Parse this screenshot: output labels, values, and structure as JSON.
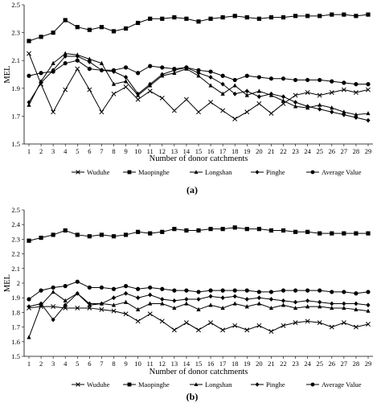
{
  "chart_data": [
    {
      "type": "line",
      "caption": "(a)",
      "xlabel": "Number of donor catchments",
      "ylabel": "MEL",
      "ylim": [
        1.5,
        2.5
      ],
      "yticks": [
        "1.5",
        "1.7",
        "1.9",
        "2.1",
        "2.3",
        "2.5"
      ],
      "x": [
        1,
        2,
        3,
        4,
        5,
        6,
        7,
        8,
        9,
        10,
        11,
        12,
        13,
        14,
        15,
        16,
        17,
        18,
        19,
        20,
        21,
        22,
        23,
        24,
        25,
        26,
        27,
        28,
        29
      ],
      "grid": false,
      "legend_position": "bottom",
      "series": [
        {
          "name": "Wuduhe",
          "marker": "x",
          "values": [
            2.15,
            1.93,
            1.73,
            1.89,
            2.04,
            1.89,
            1.73,
            1.86,
            1.91,
            1.82,
            1.88,
            1.83,
            1.74,
            1.82,
            1.73,
            1.8,
            1.74,
            1.68,
            1.73,
            1.79,
            1.72,
            1.79,
            1.85,
            1.87,
            1.85,
            1.87,
            1.89,
            1.87,
            1.89
          ]
        },
        {
          "name": "Maopinghe",
          "marker": "square",
          "values": [
            2.24,
            2.27,
            2.3,
            2.39,
            2.34,
            2.32,
            2.34,
            2.31,
            2.33,
            2.37,
            2.4,
            2.4,
            2.41,
            2.4,
            2.38,
            2.4,
            2.41,
            2.42,
            2.41,
            2.4,
            2.41,
            2.41,
            2.42,
            2.42,
            2.42,
            2.43,
            2.43,
            2.42,
            2.43
          ]
        },
        {
          "name": "Longshan",
          "marker": "triangle",
          "values": [
            1.78,
            1.95,
            2.08,
            2.15,
            2.14,
            2.11,
            2.08,
            1.93,
            1.95,
            1.85,
            1.92,
            1.99,
            2.01,
            2.04,
            1.99,
            1.92,
            1.86,
            1.92,
            1.85,
            1.88,
            1.85,
            1.81,
            1.77,
            1.76,
            1.78,
            1.76,
            1.73,
            1.71,
            1.72
          ]
        },
        {
          "name": "Pinghe",
          "marker": "diamond",
          "values": [
            1.8,
            1.94,
            2.03,
            2.13,
            2.13,
            2.09,
            2.03,
            2.02,
            1.98,
            1.86,
            1.93,
            2.0,
            2.03,
            2.05,
            2.01,
            1.98,
            1.93,
            1.86,
            1.88,
            1.84,
            1.86,
            1.84,
            1.8,
            1.77,
            1.75,
            1.73,
            1.71,
            1.69,
            1.67
          ]
        },
        {
          "name": "Average Value",
          "marker": "circle",
          "values": [
            1.99,
            2.01,
            2.02,
            2.08,
            2.1,
            2.04,
            2.03,
            2.03,
            2.05,
            2.01,
            2.06,
            2.05,
            2.04,
            2.05,
            2.03,
            2.02,
            1.99,
            1.96,
            1.99,
            1.98,
            1.97,
            1.97,
            1.96,
            1.96,
            1.96,
            1.95,
            1.94,
            1.93,
            1.93
          ]
        }
      ]
    },
    {
      "type": "line",
      "caption": "(b)",
      "xlabel": "Number of donor catchments",
      "ylabel": "MEL",
      "ylim": [
        1.5,
        2.5
      ],
      "yticks": [
        "1.5",
        "1.6",
        "1.7",
        "1.8",
        "1.9",
        "2",
        "2.1",
        "2.2",
        "2.3",
        "2.4",
        "2.5"
      ],
      "x": [
        1,
        2,
        3,
        4,
        5,
        6,
        7,
        8,
        9,
        10,
        11,
        12,
        13,
        14,
        15,
        16,
        17,
        18,
        19,
        20,
        21,
        22,
        23,
        24,
        25,
        26,
        27,
        28,
        29
      ],
      "grid": false,
      "legend_position": "bottom",
      "series": [
        {
          "name": "Wuduhe",
          "marker": "x",
          "values": [
            1.83,
            1.84,
            1.84,
            1.83,
            1.83,
            1.83,
            1.82,
            1.81,
            1.79,
            1.74,
            1.79,
            1.74,
            1.68,
            1.73,
            1.68,
            1.73,
            1.68,
            1.71,
            1.68,
            1.71,
            1.67,
            1.71,
            1.73,
            1.74,
            1.73,
            1.7,
            1.73,
            1.7,
            1.72
          ]
        },
        {
          "name": "Maopinghe",
          "marker": "square",
          "values": [
            2.29,
            2.31,
            2.33,
            2.36,
            2.33,
            2.32,
            2.33,
            2.32,
            2.33,
            2.35,
            2.34,
            2.35,
            2.37,
            2.36,
            2.36,
            2.37,
            2.37,
            2.38,
            2.37,
            2.37,
            2.36,
            2.36,
            2.35,
            2.35,
            2.34,
            2.34,
            2.34,
            2.34,
            2.34
          ]
        },
        {
          "name": "Longshan",
          "marker": "triangle",
          "values": [
            1.63,
            1.85,
            1.94,
            1.88,
            1.93,
            1.85,
            1.86,
            1.85,
            1.87,
            1.82,
            1.86,
            1.86,
            1.83,
            1.86,
            1.82,
            1.85,
            1.83,
            1.86,
            1.84,
            1.86,
            1.83,
            1.85,
            1.83,
            1.84,
            1.84,
            1.83,
            1.83,
            1.82,
            1.81
          ]
        },
        {
          "name": "Pinghe",
          "marker": "diamond",
          "values": [
            1.84,
            1.86,
            1.75,
            1.85,
            1.93,
            1.86,
            1.86,
            1.9,
            1.93,
            1.9,
            1.92,
            1.89,
            1.88,
            1.89,
            1.89,
            1.91,
            1.9,
            1.91,
            1.89,
            1.9,
            1.89,
            1.88,
            1.87,
            1.88,
            1.87,
            1.86,
            1.86,
            1.86,
            1.85
          ]
        },
        {
          "name": "Average Value",
          "marker": "circle",
          "values": [
            1.89,
            1.95,
            1.97,
            1.98,
            2.01,
            1.97,
            1.97,
            1.96,
            1.98,
            1.96,
            1.97,
            1.96,
            1.95,
            1.95,
            1.94,
            1.95,
            1.95,
            1.95,
            1.95,
            1.94,
            1.94,
            1.95,
            1.95,
            1.95,
            1.95,
            1.94,
            1.94,
            1.93,
            1.94
          ]
        }
      ]
    }
  ]
}
